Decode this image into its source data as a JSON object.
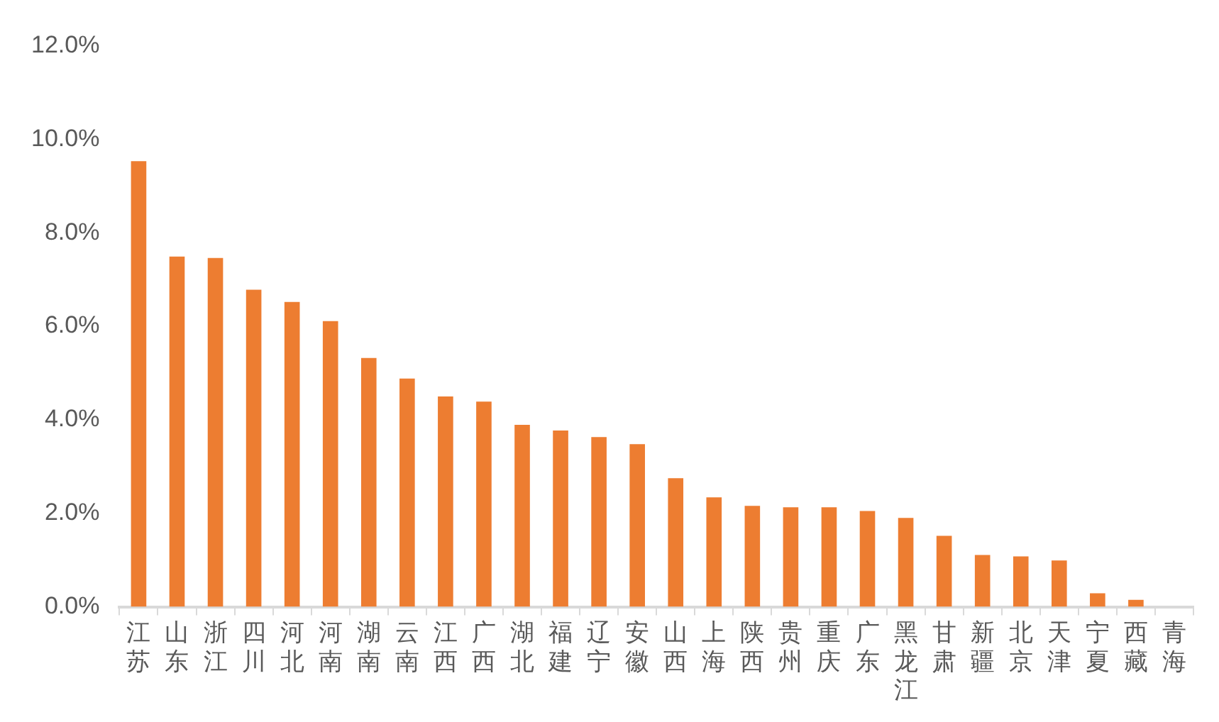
{
  "chart_data": {
    "type": "bar",
    "categories": [
      "江苏",
      "山东",
      "浙江",
      "四川",
      "河北",
      "河南",
      "湖南",
      "云南",
      "江西",
      "广西",
      "湖北",
      "福建",
      "辽宁",
      "安徽",
      "山西",
      "上海",
      "陕西",
      "贵州",
      "重庆",
      "广东",
      "黑龙江",
      "甘肃",
      "新疆",
      "北京",
      "天津",
      "宁夏",
      "西藏",
      "青海"
    ],
    "values": [
      9.53,
      7.49,
      7.46,
      6.78,
      6.52,
      6.11,
      5.32,
      4.88,
      4.5,
      4.39,
      3.89,
      3.77,
      3.63,
      3.48,
      2.75,
      2.34,
      2.16,
      2.13,
      2.13,
      2.05,
      1.9,
      1.52,
      1.11,
      1.08,
      0.99,
      0.29,
      0.15,
      0
    ],
    "color": "#ed7d31",
    "ylim": [
      0,
      12
    ],
    "yticks": [
      {
        "value": 0,
        "label": "0.0%"
      },
      {
        "value": 2,
        "label": "2.0%"
      },
      {
        "value": 4,
        "label": "4.0%"
      },
      {
        "value": 6,
        "label": "6.0%"
      },
      {
        "value": 8,
        "label": "8.0%"
      },
      {
        "value": 10,
        "label": "10.0%"
      },
      {
        "value": 12,
        "label": "12.0%"
      }
    ],
    "grid": false,
    "legend": false
  }
}
